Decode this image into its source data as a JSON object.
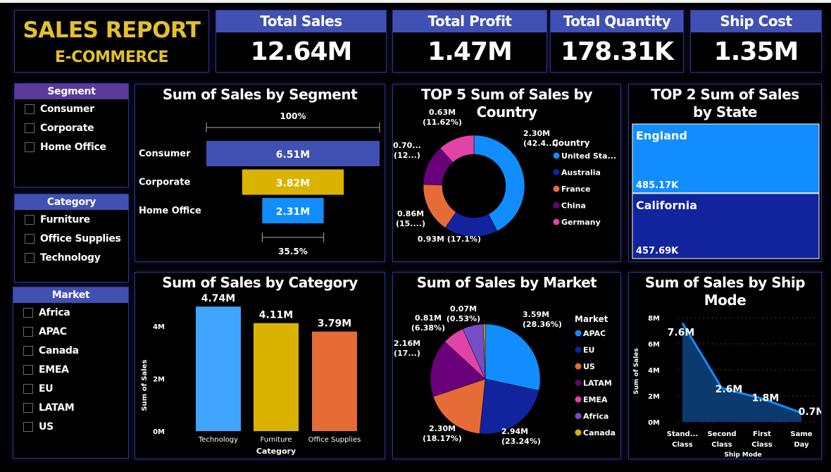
{
  "header": {
    "title": "SALES REPORT",
    "subtitle": "E-COMMERCE"
  },
  "kpis": [
    {
      "label": "Total Sales",
      "value": "12.64M"
    },
    {
      "label": "Total Profit",
      "value": "1.47M"
    },
    {
      "label": "Total Quantity",
      "value": "178.31K"
    },
    {
      "label": "Ship Cost",
      "value": "1.35M"
    }
  ],
  "slicers": {
    "segment": {
      "title": "Segment",
      "header_color": "#5b3a9a",
      "items": [
        "Consumer",
        "Corporate",
        "Home Office"
      ]
    },
    "category": {
      "title": "Category",
      "header_color": "#4150b3",
      "items": [
        "Furniture",
        "Office Supplies",
        "Technology"
      ]
    },
    "market": {
      "title": "Market",
      "header_color": "#4150b3",
      "items": [
        "Africa",
        "APAC",
        "Canada",
        "EMEA",
        "EU",
        "LATAM",
        "US"
      ]
    }
  },
  "chart_data": [
    {
      "type": "funnel",
      "title": "Sum of Sales by Segment",
      "categories": [
        "Consumer",
        "Corporate",
        "Home Office"
      ],
      "values": [
        6.51,
        3.82,
        2.31
      ],
      "labels": [
        "6.51M",
        "3.82M",
        "2.31M"
      ],
      "colors": [
        "#4150b3",
        "#d9b300",
        "#118dff"
      ],
      "top_percent": "100%",
      "bottom_percent": "35.5%"
    },
    {
      "type": "donut",
      "title": "TOP 5 Sum of Sales by Country",
      "legend_title": "Country",
      "legend_position": "right",
      "categories": [
        "United Sta...",
        "Australia",
        "France",
        "China",
        "Germany"
      ],
      "values": [
        2.3,
        0.93,
        0.86,
        0.7,
        0.63
      ],
      "labels": [
        [
          "2.30M",
          "(42.4...)"
        ],
        [
          "0.93M (17.1%)"
        ],
        [
          "0.86M",
          "(15....)"
        ],
        [
          "0.70...",
          "(12...)"
        ],
        [
          "0.63M",
          "(11.62%)"
        ]
      ],
      "colors": [
        "#118dff",
        "#12239e",
        "#e66c37",
        "#6b007b",
        "#e044a7"
      ]
    },
    {
      "type": "treemap",
      "title": "TOP 2 Sum of Sales by State",
      "categories": [
        "England",
        "California"
      ],
      "values": [
        485.17,
        457.69
      ],
      "labels": [
        "485.17K",
        "457.69K"
      ],
      "colors": [
        "#118dff",
        "#12239e"
      ]
    },
    {
      "type": "bar",
      "title": "Sum of Sales by Category",
      "xlabel": "Category",
      "ylabel": "Sum of Sales",
      "categories": [
        "Technology",
        "Furniture",
        "Office Supplies"
      ],
      "values": [
        4.74,
        4.11,
        3.79
      ],
      "labels": [
        "4.74M",
        "4.11M",
        "3.79M"
      ],
      "colors": [
        "#41a4ff",
        "#d9b300",
        "#e66c37"
      ],
      "yticks": [
        "0M",
        "2M",
        "4M"
      ],
      "ylim": [
        0,
        5
      ]
    },
    {
      "type": "pie",
      "title": "Sum of Sales by Market",
      "legend_title": "Market",
      "legend_position": "right",
      "categories": [
        "APAC",
        "EU",
        "US",
        "LATAM",
        "EMEA",
        "Africa",
        "Canada"
      ],
      "values": [
        3.59,
        2.94,
        2.3,
        2.16,
        0.81,
        0.78,
        0.07
      ],
      "labels": [
        [
          "3.59M",
          "(28.36%)"
        ],
        [
          "2.94M",
          "(23.24%)"
        ],
        [
          "2.30M",
          "(18.17%)"
        ],
        [
          "2.16M",
          "(17...)"
        ],
        [
          "0.81M",
          "(6.38%)"
        ],
        [],
        [
          "0.07M",
          "(0.53%)"
        ]
      ],
      "colors": [
        "#118dff",
        "#12239e",
        "#e66c37",
        "#6b007b",
        "#e044a7",
        "#744ec2",
        "#d9b300"
      ]
    },
    {
      "type": "area",
      "title": "Sum of Sales by Ship Mode",
      "xlabel": "Ship Mode",
      "ylabel": "Sum of Sales",
      "categories": [
        [
          "Stand...",
          "Class"
        ],
        [
          "Second",
          "Class"
        ],
        [
          "First",
          "Class"
        ],
        [
          "Same",
          "Day"
        ]
      ],
      "values": [
        7.6,
        2.6,
        1.8,
        0.7
      ],
      "labels": [
        "7.6M",
        "2.6M",
        "1.8M",
        "0.7M"
      ],
      "yticks": [
        "0M",
        "2M",
        "4M",
        "6M",
        "8M"
      ],
      "ylim": [
        0,
        8
      ],
      "grid": true,
      "line_color": "#118dff",
      "fill_color": "#0b3a6e"
    }
  ]
}
